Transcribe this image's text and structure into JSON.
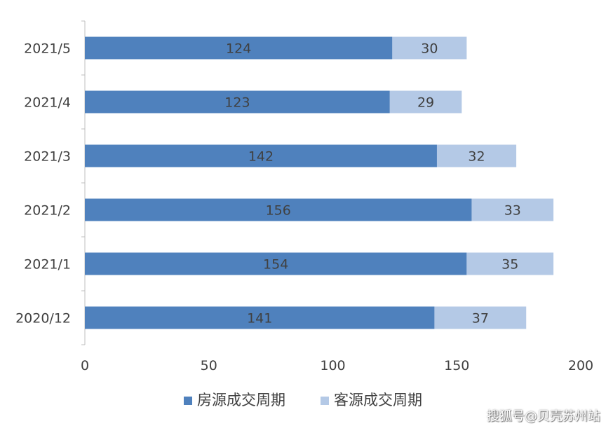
{
  "chart_data": {
    "type": "bar",
    "orientation": "horizontal",
    "stacked": true,
    "categories": [
      "2021/5",
      "2021/4",
      "2021/3",
      "2021/2",
      "2021/1",
      "2020/12"
    ],
    "series": [
      {
        "name": "房源成交周期",
        "values": [
          124,
          123,
          142,
          156,
          154,
          141
        ],
        "color": "#4f81bd"
      },
      {
        "name": "客源成交周期",
        "values": [
          30,
          29,
          32,
          33,
          35,
          37
        ],
        "color": "#b4c9e6"
      }
    ],
    "xlim": [
      0,
      200
    ],
    "xticks": [
      0,
      50,
      100,
      150,
      200
    ],
    "grid": false,
    "legend_position": "bottom"
  },
  "watermark": "搜狐号@贝壳苏州站"
}
